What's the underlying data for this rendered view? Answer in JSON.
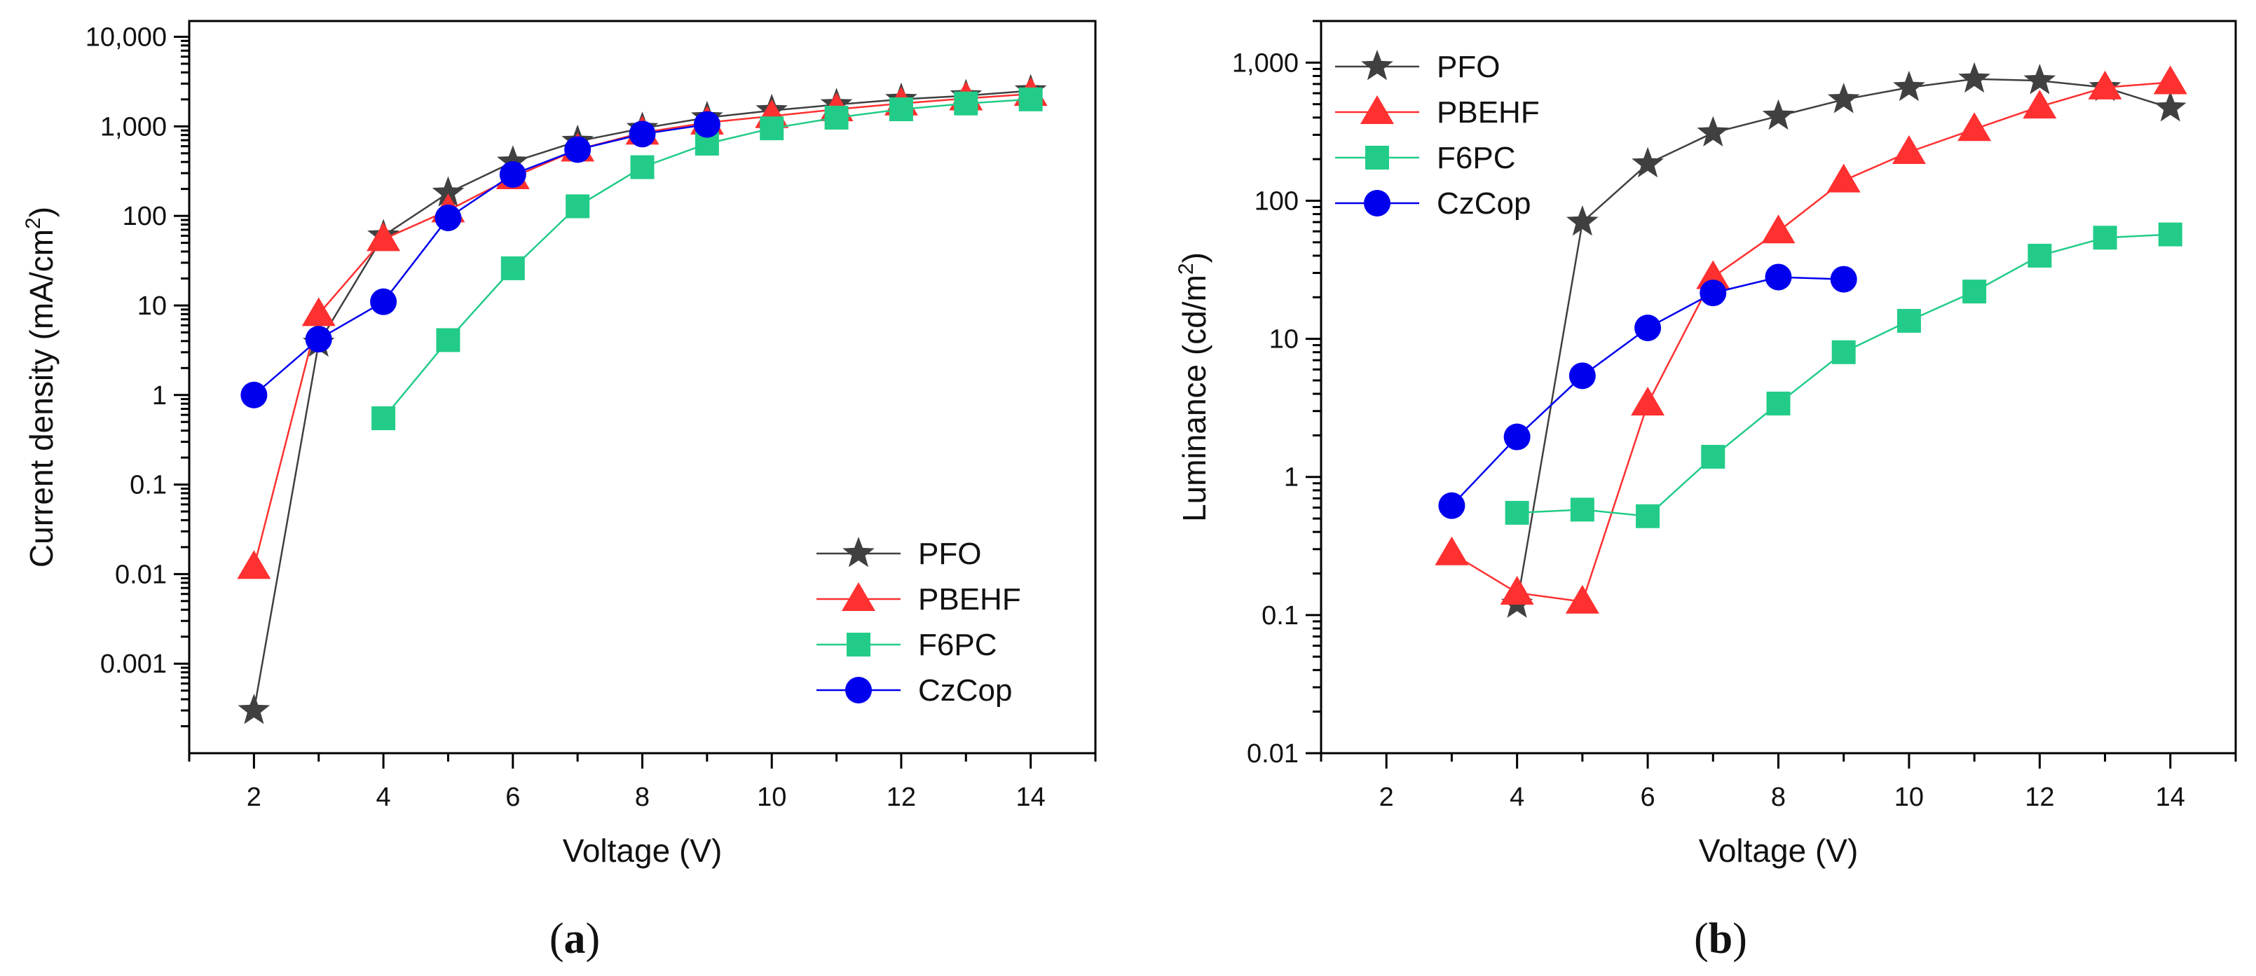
{
  "chart_data": [
    {
      "type": "line",
      "panel_label": "(a)",
      "panel_letter": "a",
      "title": "",
      "xlabel": "Voltage (V)",
      "ylabel": "Current density (mA/cm",
      "ylabel_sup": "2",
      "ylabel_end": ")",
      "yscale": "log",
      "xlim": [
        1,
        15
      ],
      "ylim": [
        0.0001,
        15000
      ],
      "xticks": [
        2,
        4,
        6,
        8,
        10,
        12,
        14
      ],
      "xtick_labels": [
        "2",
        "4",
        "6",
        "8",
        "10",
        "12",
        "14"
      ],
      "yticks": [
        0.001,
        0.01,
        0.1,
        1,
        10,
        100,
        1000,
        10000
      ],
      "ytick_labels": [
        "0.001",
        "0.01",
        "0.1",
        "1",
        "10",
        "100",
        "1,000",
        "10,000"
      ],
      "legend_position": "bottom-right",
      "series": [
        {
          "name": "PFO",
          "color": "#404040",
          "marker": "star",
          "x": [
            2,
            3,
            4,
            5,
            6,
            7,
            8,
            9,
            10,
            11,
            12,
            13,
            14
          ],
          "y": [
            0.0003,
            3.8,
            60,
            180,
            400,
            680,
            950,
            1250,
            1500,
            1750,
            2000,
            2200,
            2500
          ]
        },
        {
          "name": "PBEHF",
          "color": "#ff3030",
          "marker": "triangle",
          "x": [
            2,
            3,
            4,
            5,
            6,
            7,
            8,
            9,
            10,
            11,
            12,
            13,
            14
          ],
          "y": [
            0.012,
            8,
            55,
            115,
            270,
            550,
            850,
            1100,
            1300,
            1550,
            1800,
            2050,
            2300
          ]
        },
        {
          "name": "F6PC",
          "color": "#22cc88",
          "marker": "square",
          "x": [
            4,
            5,
            6,
            7,
            8,
            9,
            10,
            11,
            12,
            13,
            14
          ],
          "y": [
            0.55,
            4.1,
            26,
            128,
            350,
            640,
            950,
            1250,
            1550,
            1800,
            2000
          ]
        },
        {
          "name": "CzCop",
          "color": "#0000ee",
          "marker": "circle",
          "x": [
            2,
            3,
            4,
            5,
            6,
            7,
            8,
            9
          ],
          "y": [
            1,
            4.2,
            11,
            95,
            290,
            550,
            820,
            1050
          ]
        }
      ]
    },
    {
      "type": "line",
      "panel_label": "(b)",
      "panel_letter": "b",
      "title": "",
      "xlabel": "Voltage (V)",
      "ylabel": "Luminance (cd/m",
      "ylabel_sup": "2",
      "ylabel_end": ")",
      "yscale": "log",
      "xlim": [
        1,
        15
      ],
      "ylim": [
        0.01,
        2000
      ],
      "xticks": [
        2,
        4,
        6,
        8,
        10,
        12,
        14
      ],
      "xtick_labels": [
        "2",
        "4",
        "6",
        "8",
        "10",
        "12",
        "14"
      ],
      "yticks": [
        0.01,
        0.1,
        1,
        10,
        100,
        1000
      ],
      "ytick_labels": [
        "0.01",
        "0.1",
        "1",
        "10",
        "100",
        "1,000"
      ],
      "legend_position": "top-left",
      "series": [
        {
          "name": "PFO",
          "color": "#404040",
          "marker": "star",
          "x": [
            4,
            5,
            6,
            7,
            8,
            9,
            10,
            11,
            12,
            13,
            14
          ],
          "y": [
            0.12,
            70,
            185,
            310,
            410,
            540,
            660,
            760,
            740,
            660,
            470
          ]
        },
        {
          "name": "PBEHF",
          "color": "#ff3030",
          "marker": "triangle",
          "x": [
            3,
            4,
            5,
            6,
            7,
            8,
            9,
            10,
            11,
            12,
            13,
            14
          ],
          "y": [
            0.28,
            0.145,
            0.125,
            3.4,
            28,
            60,
            140,
            225,
            330,
            480,
            660,
            720
          ]
        },
        {
          "name": "F6PC",
          "color": "#22cc88",
          "marker": "square",
          "x": [
            4,
            5,
            6,
            7,
            8,
            9,
            10,
            11,
            12,
            13,
            14
          ],
          "y": [
            0.55,
            0.58,
            0.52,
            1.4,
            3.4,
            8,
            13.5,
            22,
            40,
            54,
            57
          ]
        },
        {
          "name": "CzCop",
          "color": "#0000ee",
          "marker": "circle",
          "x": [
            3,
            4,
            5,
            6,
            7,
            8,
            9
          ],
          "y": [
            0.62,
            1.95,
            5.4,
            12,
            21.5,
            28,
            27
          ]
        }
      ]
    }
  ]
}
